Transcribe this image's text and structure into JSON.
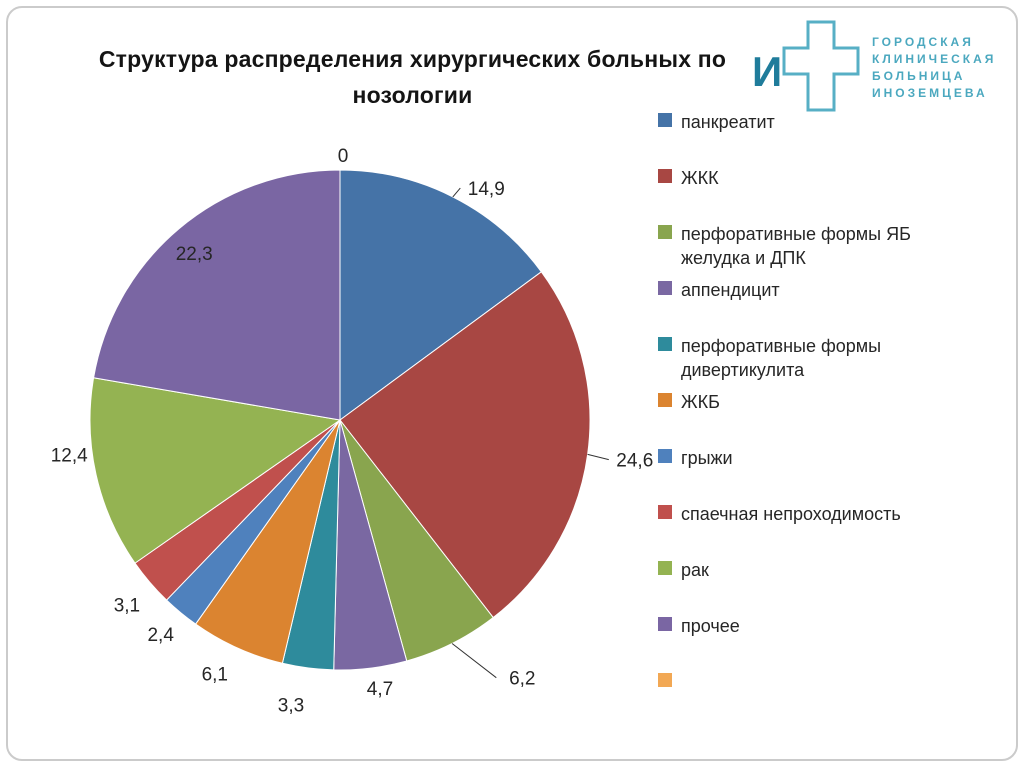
{
  "slide": {
    "title": "Структура распределения хирургических больных по нозологии"
  },
  "logo": {
    "letter": "И",
    "lines": [
      "ГОРОДСКАЯ",
      "КЛИНИЧЕСКАЯ",
      "БОЛЬНИЦА",
      "ИНОЗЕМЦЕВА"
    ],
    "accent_color": "#4ba8bf"
  },
  "chart_data": {
    "type": "pie",
    "title": "Структура распределения хирургических больных по нозологии",
    "legend_position": "right",
    "start_angle_deg": 0,
    "direction": "clockwise",
    "total": 100.0,
    "slices": [
      {
        "name": "панкреатит",
        "value": 14.9,
        "value_label": "14,9",
        "color": "#4573A7"
      },
      {
        "name": "ЖКК",
        "value": 24.6,
        "value_label": "24,6",
        "color": "#A84743"
      },
      {
        "name": "перфоративные формы ЯБ желудка и ДПК",
        "value": 6.2,
        "value_label": "6,2",
        "color": "#89A54E"
      },
      {
        "name": "аппендицит",
        "value": 4.7,
        "value_label": "4,7",
        "color": "#7A68A2"
      },
      {
        "name": "перфоративные формы дивертикулита",
        "value": 3.3,
        "value_label": "3,3",
        "color": "#2E8B9C"
      },
      {
        "name": "ЖКБ",
        "value": 6.1,
        "value_label": "6,1",
        "color": "#DB8430"
      },
      {
        "name": "грыжи",
        "value": 2.4,
        "value_label": "2,4",
        "color": "#4F81BD"
      },
      {
        "name": "спаечная непроходимость",
        "value": 3.1,
        "value_label": "3,1",
        "color": "#C0504D"
      },
      {
        "name": "рак",
        "value": 12.4,
        "value_label": "12,4",
        "color": "#94B352"
      },
      {
        "name": "прочее",
        "value": 22.3,
        "value_label": "22,3",
        "color": "#7A66A3"
      },
      {
        "name": "",
        "value": 0,
        "value_label": "0",
        "color": "#F2A854"
      }
    ]
  }
}
